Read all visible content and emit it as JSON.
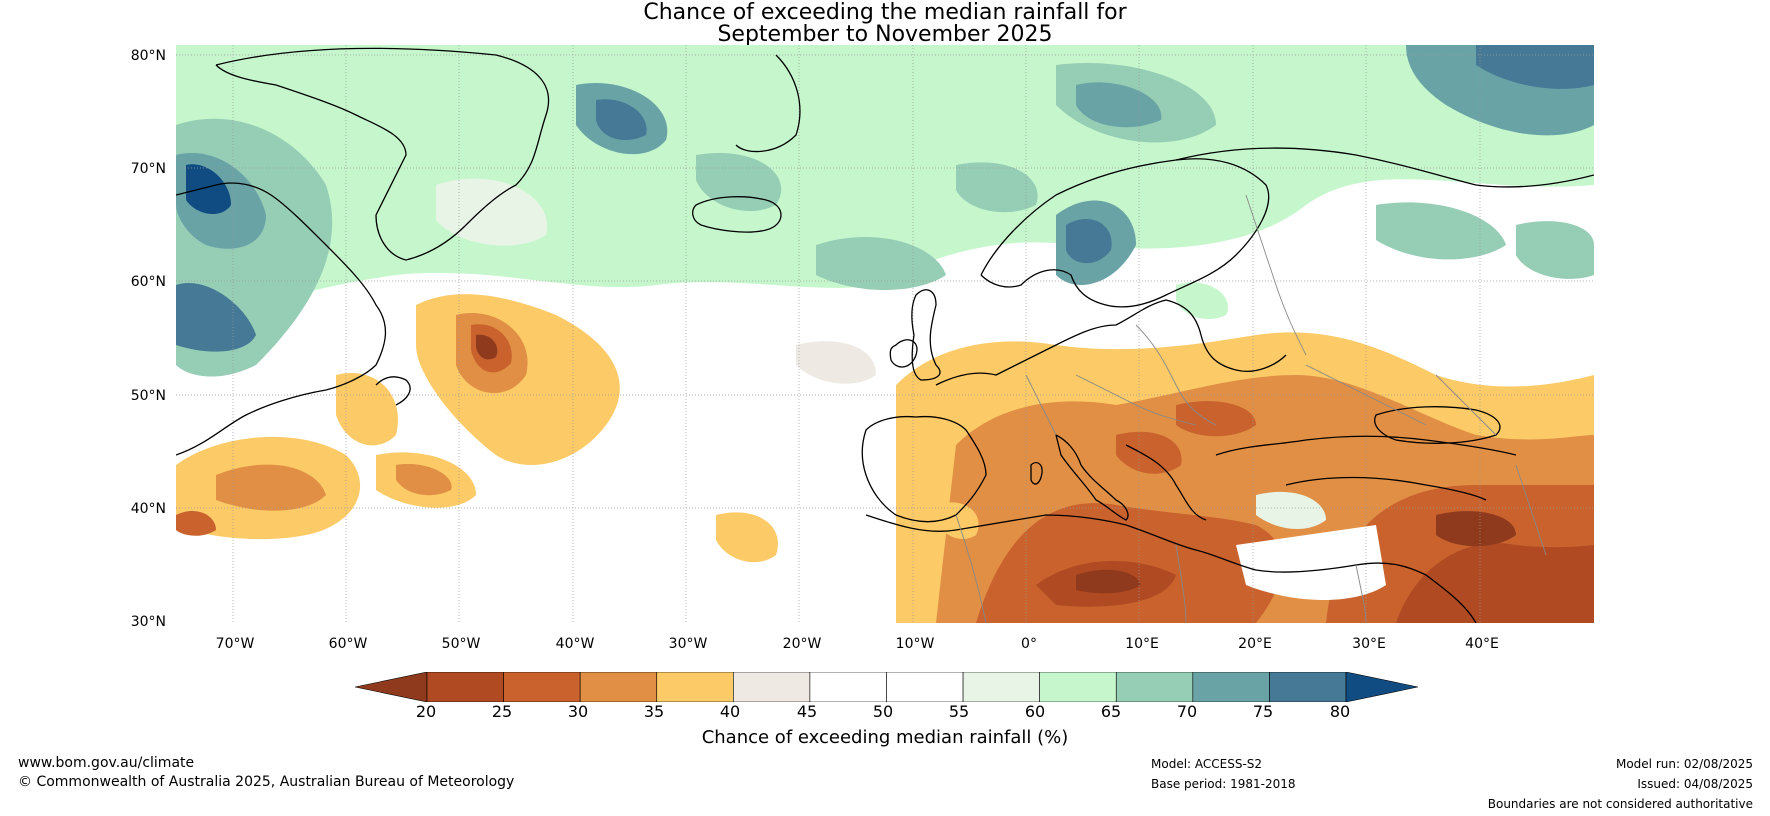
{
  "title": {
    "line1": "Chance of exceeding the median rainfall for",
    "line2": "September to November 2025"
  },
  "latitude_labels": [
    "80°N",
    "70°N",
    "60°N",
    "50°N",
    "40°N",
    "30°N"
  ],
  "longitude_labels": [
    "70°W",
    "60°W",
    "50°W",
    "40°W",
    "30°W",
    "20°W",
    "10°W",
    "0°",
    "10°E",
    "20°E",
    "30°E",
    "40°E"
  ],
  "colorbar": {
    "ticks": [
      "20",
      "25",
      "30",
      "35",
      "40",
      "45",
      "50",
      "55",
      "60",
      "65",
      "70",
      "75",
      "80"
    ],
    "label": "Chance of exceeding median rainfall (%)",
    "colors": [
      "#8f3a1c",
      "#b04a22",
      "#c9622d",
      "#e08f45",
      "#fcca66",
      "#efe9e4",
      "#ffffff",
      "#ffffff",
      "#e8f5e6",
      "#c6f7cc",
      "#96cdb5",
      "#6aa3a6",
      "#457995",
      "#104c82"
    ]
  },
  "footer": {
    "website": "www.bom.gov.au/climate",
    "copyright": "© Commonwealth of Australia 2025, Australian Bureau of Meteorology",
    "model": "Model: ACCESS-S2",
    "base_period": "Base period: 1981-2018",
    "model_run": "Model run: 02/08/2025",
    "issued": "Issued: 04/08/2025",
    "disclaimer": "Boundaries are not considered authoritative"
  },
  "map_colors": {
    "sea_white": "#ffffff",
    "coast": "#000000",
    "border": "#888888",
    "grid": "#999999"
  }
}
